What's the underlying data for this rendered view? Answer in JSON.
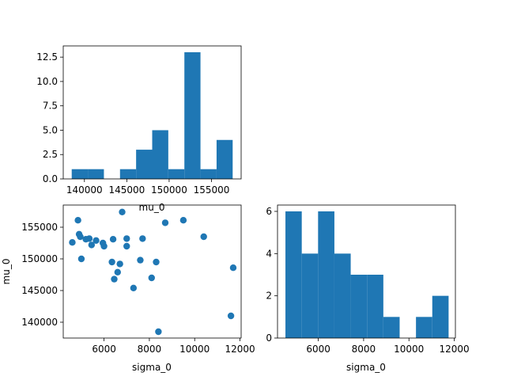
{
  "colors": {
    "bar": "#1f77b4",
    "point": "#1f77b4",
    "axis": "#000000",
    "background": "#ffffff"
  },
  "chart_data": [
    {
      "id": "hist_mu0",
      "type": "bar",
      "subtype": "histogram",
      "xlabel": "mu_0",
      "ylabel": "",
      "xlim": [
        137500,
        158500
      ],
      "ylim": [
        0,
        13.65
      ],
      "bins": [
        {
          "x0": 138500,
          "x1": 140400,
          "count": 1
        },
        {
          "x0": 140400,
          "x1": 142300,
          "count": 1
        },
        {
          "x0": 142300,
          "x1": 144200,
          "count": 0
        },
        {
          "x0": 144200,
          "x1": 146100,
          "count": 1
        },
        {
          "x0": 146100,
          "x1": 148000,
          "count": 3
        },
        {
          "x0": 148000,
          "x1": 149900,
          "count": 5
        },
        {
          "x0": 149900,
          "x1": 151800,
          "count": 1
        },
        {
          "x0": 151800,
          "x1": 153700,
          "count": 13
        },
        {
          "x0": 153700,
          "x1": 155600,
          "count": 1
        },
        {
          "x0": 155600,
          "x1": 157500,
          "count": 4
        }
      ],
      "x_ticks": [
        {
          "value": 140000,
          "label": "140000"
        },
        {
          "value": 145000,
          "label": "145000"
        },
        {
          "value": 150000,
          "label": "150000"
        },
        {
          "value": 155000,
          "label": "155000"
        }
      ],
      "y_ticks": [
        {
          "value": 0,
          "label": "0.0"
        },
        {
          "value": 2.5,
          "label": "2.5"
        },
        {
          "value": 5,
          "label": "5.0"
        },
        {
          "value": 7.5,
          "label": "7.5"
        },
        {
          "value": 10,
          "label": "10.0"
        },
        {
          "value": 12.5,
          "label": "12.5"
        }
      ]
    },
    {
      "id": "scatter",
      "type": "scatter",
      "xlabel": "sigma_0",
      "ylabel": "mu_0",
      "xlim": [
        4200,
        12050
      ],
      "ylim": [
        137500,
        158500
      ],
      "points": [
        {
          "x": 4600,
          "y": 152600
        },
        {
          "x": 4850,
          "y": 156100
        },
        {
          "x": 4900,
          "y": 153900
        },
        {
          "x": 4950,
          "y": 153500
        },
        {
          "x": 5000,
          "y": 150000
        },
        {
          "x": 5200,
          "y": 153100
        },
        {
          "x": 5350,
          "y": 153200
        },
        {
          "x": 5450,
          "y": 152200
        },
        {
          "x": 5650,
          "y": 152900
        },
        {
          "x": 5950,
          "y": 152500
        },
        {
          "x": 6000,
          "y": 152000
        },
        {
          "x": 6350,
          "y": 149500
        },
        {
          "x": 6400,
          "y": 153100
        },
        {
          "x": 6450,
          "y": 146800
        },
        {
          "x": 6600,
          "y": 147900
        },
        {
          "x": 6700,
          "y": 149200
        },
        {
          "x": 6800,
          "y": 157400
        },
        {
          "x": 7000,
          "y": 153200
        },
        {
          "x": 7000,
          "y": 152000
        },
        {
          "x": 7300,
          "y": 145400
        },
        {
          "x": 7600,
          "y": 149800
        },
        {
          "x": 7700,
          "y": 153200
        },
        {
          "x": 8100,
          "y": 147000
        },
        {
          "x": 8300,
          "y": 149500
        },
        {
          "x": 8400,
          "y": 138500
        },
        {
          "x": 8700,
          "y": 155700
        },
        {
          "x": 9500,
          "y": 156100
        },
        {
          "x": 10400,
          "y": 153500
        },
        {
          "x": 11600,
          "y": 141000
        },
        {
          "x": 11700,
          "y": 148600
        }
      ],
      "x_ticks": [
        {
          "value": 6000,
          "label": "6000"
        },
        {
          "value": 8000,
          "label": "8000"
        },
        {
          "value": 10000,
          "label": "10000"
        },
        {
          "value": 12000,
          "label": "12000"
        }
      ],
      "y_ticks": [
        {
          "value": 140000,
          "label": "140000"
        },
        {
          "value": 145000,
          "label": "145000"
        },
        {
          "value": 150000,
          "label": "150000"
        },
        {
          "value": 155000,
          "label": "155000"
        }
      ]
    },
    {
      "id": "hist_sigma0",
      "type": "bar",
      "subtype": "histogram",
      "xlabel": "sigma_0",
      "ylabel": "",
      "xlim": [
        4200,
        12050
      ],
      "ylim": [
        0,
        6.3
      ],
      "bins": [
        {
          "x0": 4550,
          "x1": 5270,
          "count": 6
        },
        {
          "x0": 5270,
          "x1": 5990,
          "count": 4
        },
        {
          "x0": 5990,
          "x1": 6710,
          "count": 6
        },
        {
          "x0": 6710,
          "x1": 7430,
          "count": 4
        },
        {
          "x0": 7430,
          "x1": 8150,
          "count": 3
        },
        {
          "x0": 8150,
          "x1": 8870,
          "count": 3
        },
        {
          "x0": 8870,
          "x1": 9590,
          "count": 1
        },
        {
          "x0": 9590,
          "x1": 10310,
          "count": 0
        },
        {
          "x0": 10310,
          "x1": 11030,
          "count": 1
        },
        {
          "x0": 11030,
          "x1": 11750,
          "count": 2
        }
      ],
      "x_ticks": [
        {
          "value": 6000,
          "label": "6000"
        },
        {
          "value": 8000,
          "label": "8000"
        },
        {
          "value": 10000,
          "label": "10000"
        },
        {
          "value": 12000,
          "label": "12000"
        }
      ],
      "y_ticks": [
        {
          "value": 0,
          "label": "0"
        },
        {
          "value": 2,
          "label": "2"
        },
        {
          "value": 4,
          "label": "4"
        },
        {
          "value": 6,
          "label": "6"
        }
      ]
    }
  ]
}
